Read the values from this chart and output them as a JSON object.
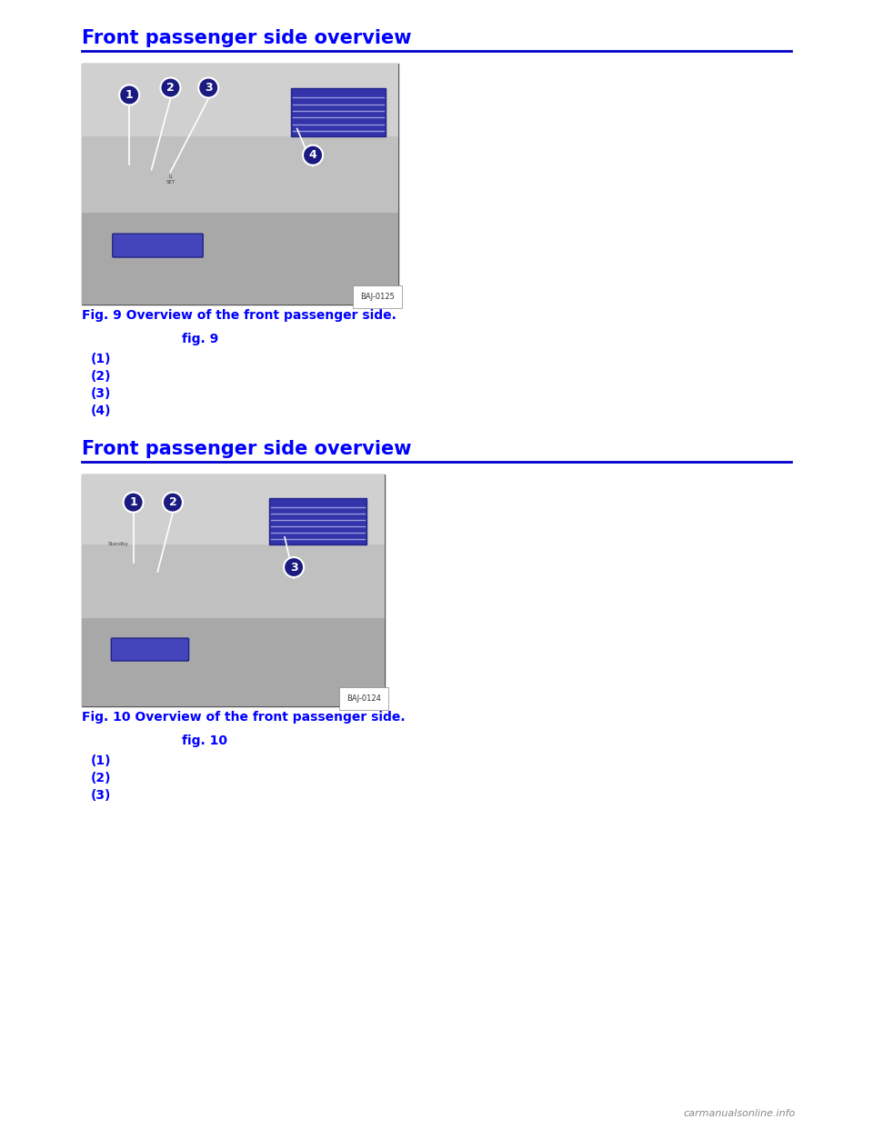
{
  "page_bg": "#ffffff",
  "heading_color": "#0000ff",
  "heading_text_1": "Front passenger side overview",
  "heading_text_2": "Front passenger side overview",
  "line_color": "#0000cd",
  "fig_caption_1": "Fig. 9 Overview of the front passenger side.",
  "fig_caption_2": "Fig. 10 Overview of the front passenger side.",
  "key_label_1": "fig. 9",
  "key_label_2": "fig. 10",
  "items_1": [
    "(1)",
    "(2)",
    "(3)",
    "(4)"
  ],
  "items_2": [
    "(1)",
    "(2)",
    "(3)"
  ],
  "watermark": "carmanualsonline.info",
  "image_code_1": "BAJ-0125",
  "image_code_2": "BAJ-0124",
  "heading_fontsize": 15,
  "caption_fontsize": 10,
  "key_fontsize": 10,
  "item_fontsize": 10
}
